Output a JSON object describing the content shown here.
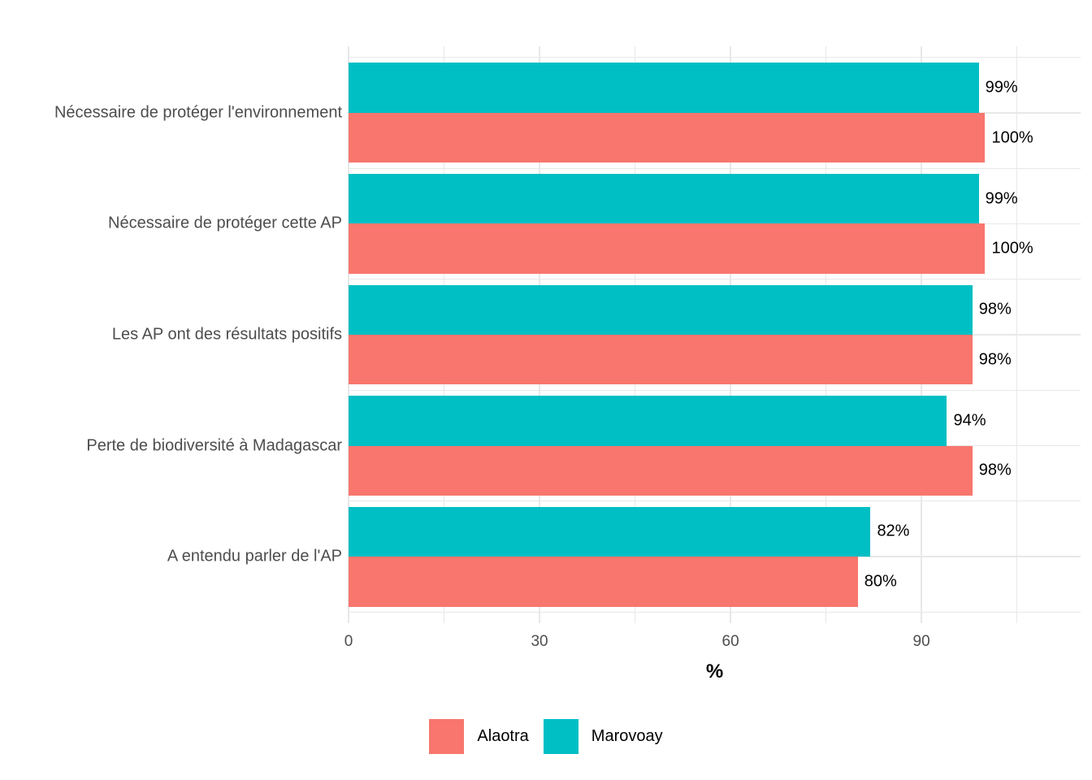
{
  "chart_data": {
    "type": "bar",
    "orientation": "horizontal",
    "title": "",
    "xlabel": "%",
    "ylabel": "",
    "categories": [
      "Nécessaire de protéger l'environnement",
      "Nécessaire de protéger cette AP",
      "Les AP ont des résultats positifs",
      "Perte de biodiversité à Madagascar",
      "A entendu parler de l'AP"
    ],
    "series": [
      {
        "name": "Marovoay",
        "color": "#00BFC4",
        "values": [
          99,
          99,
          98,
          94,
          82
        ],
        "labels": [
          "99%",
          "99%",
          "98%",
          "94%",
          "82%"
        ]
      },
      {
        "name": "Alaotra",
        "color": "#F8766D",
        "values": [
          100,
          100,
          98,
          98,
          80
        ],
        "labels": [
          "100%",
          "100%",
          "98%",
          "98%",
          "80%"
        ]
      }
    ],
    "xlim": [
      0,
      115
    ],
    "x_major_ticks": [
      0,
      30,
      60,
      90
    ],
    "x_minor_ticks": [
      15,
      45,
      75,
      105
    ],
    "grid": true,
    "grid_color": "#E8E8E8",
    "background_color": "#FFFFFF",
    "axis_text_color": "#4D4D4D",
    "value_label_color": "#000000",
    "legend_position": "bottom",
    "legend_entries": [
      {
        "label": "Alaotra",
        "color": "#F8766D"
      },
      {
        "label": "Marovoay",
        "color": "#00BFC4"
      }
    ]
  }
}
